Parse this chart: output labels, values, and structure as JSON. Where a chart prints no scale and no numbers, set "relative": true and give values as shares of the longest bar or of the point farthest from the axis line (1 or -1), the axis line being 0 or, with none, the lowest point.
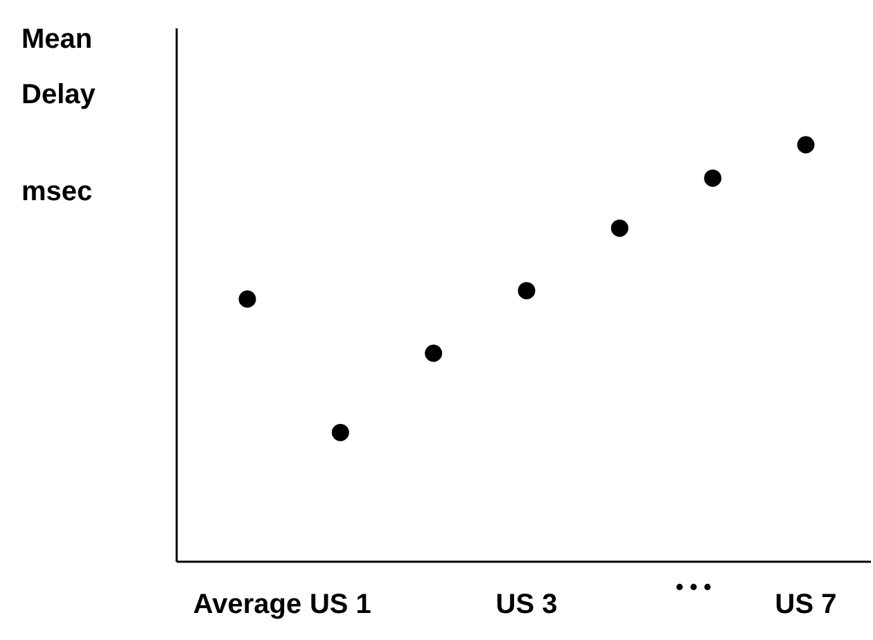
{
  "chart_data": {
    "type": "scatter",
    "ylabel": "Mean\nDelay\nmsec",
    "categories": [
      "Average",
      "US 1",
      null,
      "US 3",
      null,
      null,
      "US 7"
    ],
    "relative": true,
    "marker": "circle",
    "color": "#000000",
    "values": [
      0.63,
      0.31,
      0.5,
      0.65,
      0.8,
      0.92,
      1.0
    ],
    "annotations": [
      "• • •"
    ]
  }
}
